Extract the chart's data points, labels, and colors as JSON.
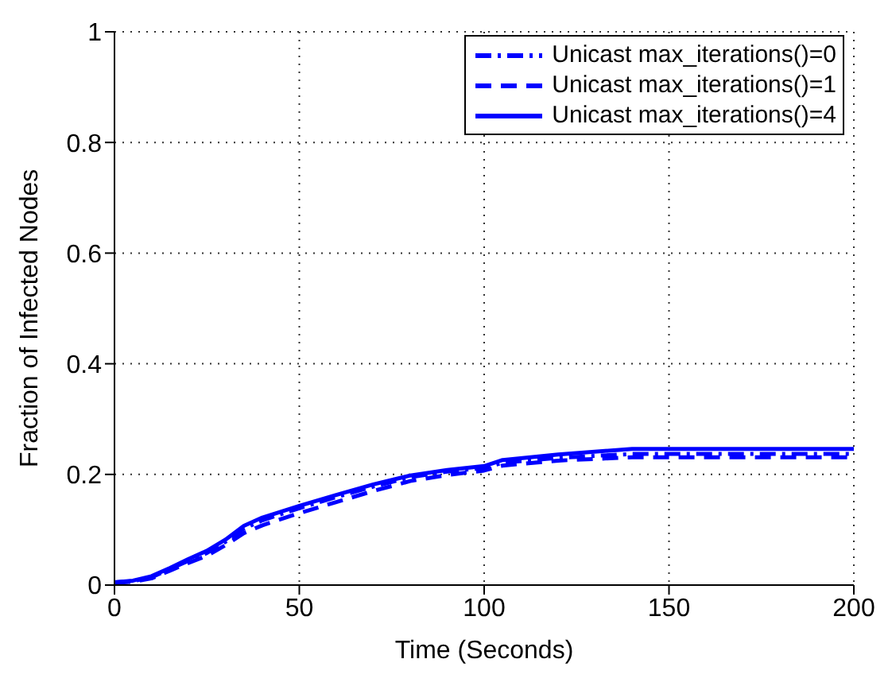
{
  "chart_data": {
    "type": "line",
    "xlabel": "Time (Seconds)",
    "ylabel": "Fraction of Infected Nodes",
    "x": [
      0,
      5,
      10,
      15,
      20,
      25,
      30,
      35,
      40,
      50,
      60,
      70,
      80,
      90,
      100,
      105,
      120,
      140,
      160,
      200
    ],
    "series": [
      {
        "name": "Unicast max_iterations()=0",
        "color": "#0000ff",
        "line_style": "dashdot",
        "values": [
          0.005,
          0.007,
          0.014,
          0.029,
          0.044,
          0.058,
          0.078,
          0.102,
          0.117,
          0.139,
          0.159,
          0.178,
          0.195,
          0.205,
          0.212,
          0.221,
          0.23,
          0.237,
          0.237,
          0.237
        ]
      },
      {
        "name": "Unicast max_iterations()=1",
        "color": "#0000ff",
        "line_style": "dashed",
        "values": [
          0.004,
          0.006,
          0.012,
          0.026,
          0.04,
          0.053,
          0.072,
          0.094,
          0.108,
          0.13,
          0.15,
          0.17,
          0.188,
          0.199,
          0.207,
          0.216,
          0.225,
          0.231,
          0.231,
          0.231
        ]
      },
      {
        "name": "Unicast max_iterations()=4",
        "color": "#0000ff",
        "line_style": "solid",
        "values": [
          0.005,
          0.008,
          0.016,
          0.031,
          0.047,
          0.062,
          0.082,
          0.107,
          0.122,
          0.143,
          0.163,
          0.182,
          0.198,
          0.208,
          0.215,
          0.226,
          0.236,
          0.246,
          0.246,
          0.246
        ]
      }
    ],
    "xlim": [
      0,
      200
    ],
    "xticks": [
      0,
      50,
      100,
      150,
      200
    ],
    "ylim": [
      0,
      1
    ],
    "yticks": [
      0,
      0.2,
      0.4,
      0.6,
      0.8,
      1
    ],
    "grid": true,
    "legend": "top right"
  }
}
